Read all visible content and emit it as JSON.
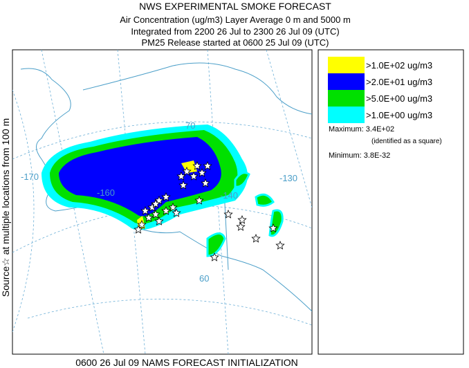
{
  "header": {
    "title": "NWS EXPERIMENTAL SMOKE FORECAST",
    "lines": [
      "Air Concentration (ug/m3) Layer Average    0 m and  5000 m",
      "Integrated from 2200 26 Jul to 2300 26 Jul 09 (UTC)",
      "PM25 Release started at 0600 25 Jul 09 (UTC)"
    ]
  },
  "side_label": "Source☆  at multiple locations   from   100 m",
  "footer": "0600 26 Jul 09 NAMS FORECAST INITIALIZATION",
  "legend": {
    "items": [
      {
        "label": ">1.0E+02 ug/m3",
        "color": "#ffff00"
      },
      {
        "label": ">2.0E+01 ug/m3",
        "color": "#0000ff"
      },
      {
        "label": ">5.0E+00 ug/m3",
        "color": "#00e000"
      },
      {
        "label": ">1.0E+00 ug/m3",
        "color": "#00ffff"
      }
    ],
    "maximum": "Maximum: 3.4E+02",
    "maximum_note": "(identified as a square)",
    "minimum": "Minimum: 3.8E-32"
  },
  "map_labels": [
    "-170",
    "-160",
    "-140",
    "-130",
    "60",
    "70"
  ]
}
